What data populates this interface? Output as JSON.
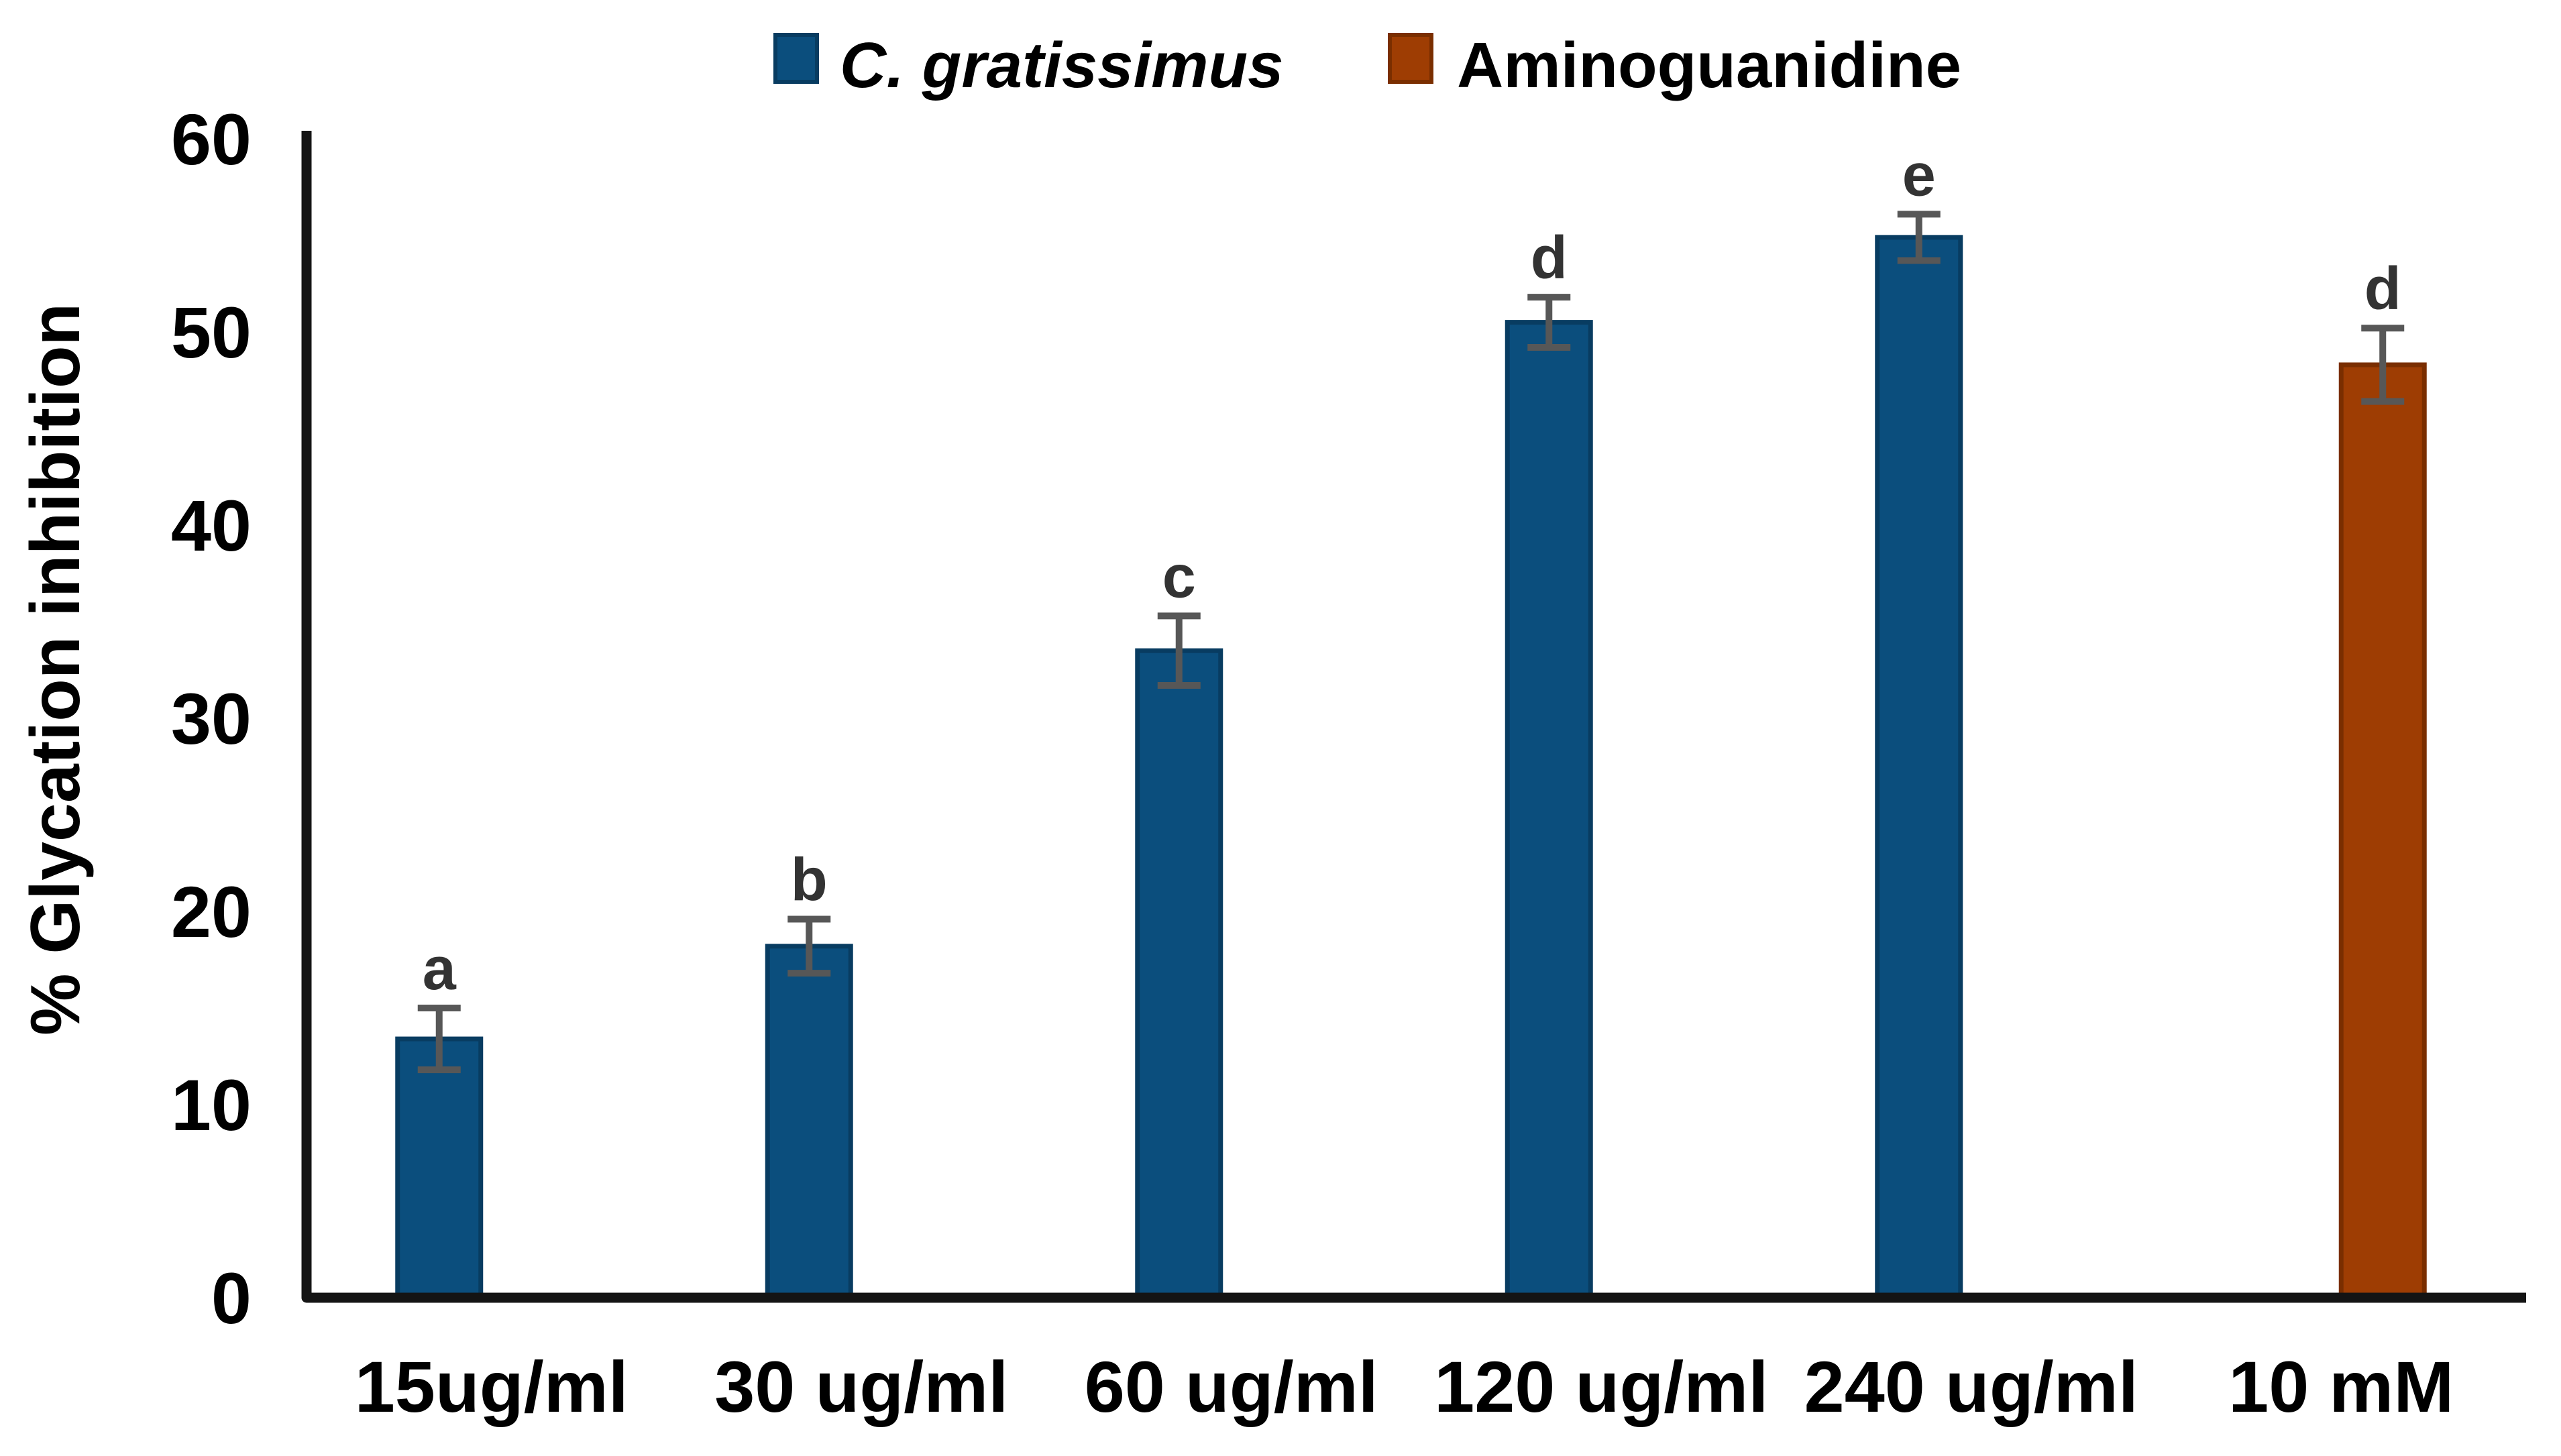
{
  "chart_data": {
    "type": "bar",
    "title": "",
    "xlabel": "",
    "ylabel": "% Glycation inhibition",
    "ylim": [
      0,
      60
    ],
    "yticks": [
      0,
      10,
      20,
      30,
      40,
      50,
      60
    ],
    "grid": false,
    "legend_position": "top-center",
    "background_color": "#ffffff",
    "axis_color": "#141414",
    "error_bar_color": "#575757",
    "letter_color": "#333333",
    "text_color": "#000000",
    "series": [
      {
        "name": "C. gratissimus",
        "italic": true,
        "fill": "#0B4E7D",
        "border": "#083C61"
      },
      {
        "name": "Aminoguanidine",
        "italic": false,
        "fill": "#9E3D03",
        "border": "#7A2E00"
      }
    ],
    "categories": [
      "15ug/ml",
      "30 ug/ml",
      "60 ug/ml",
      "120 ug/ml",
      "240 ug/ml",
      "10 mM"
    ],
    "points": [
      {
        "category": "15ug/ml",
        "series": 0,
        "value": 13.4,
        "error": 1.6,
        "letter": "a"
      },
      {
        "category": "30 ug/ml",
        "series": 0,
        "value": 18.2,
        "error": 1.4,
        "letter": "b"
      },
      {
        "category": "60 ug/ml",
        "series": 0,
        "value": 33.5,
        "error": 1.8,
        "letter": "c"
      },
      {
        "category": "120 ug/ml",
        "series": 0,
        "value": 50.5,
        "error": 1.3,
        "letter": "d"
      },
      {
        "category": "240 ug/ml",
        "series": 0,
        "value": 54.9,
        "error": 1.2,
        "letter": "e"
      },
      {
        "category": "10 mM",
        "series": 1,
        "value": 48.3,
        "error": 1.9,
        "letter": "d"
      }
    ]
  }
}
